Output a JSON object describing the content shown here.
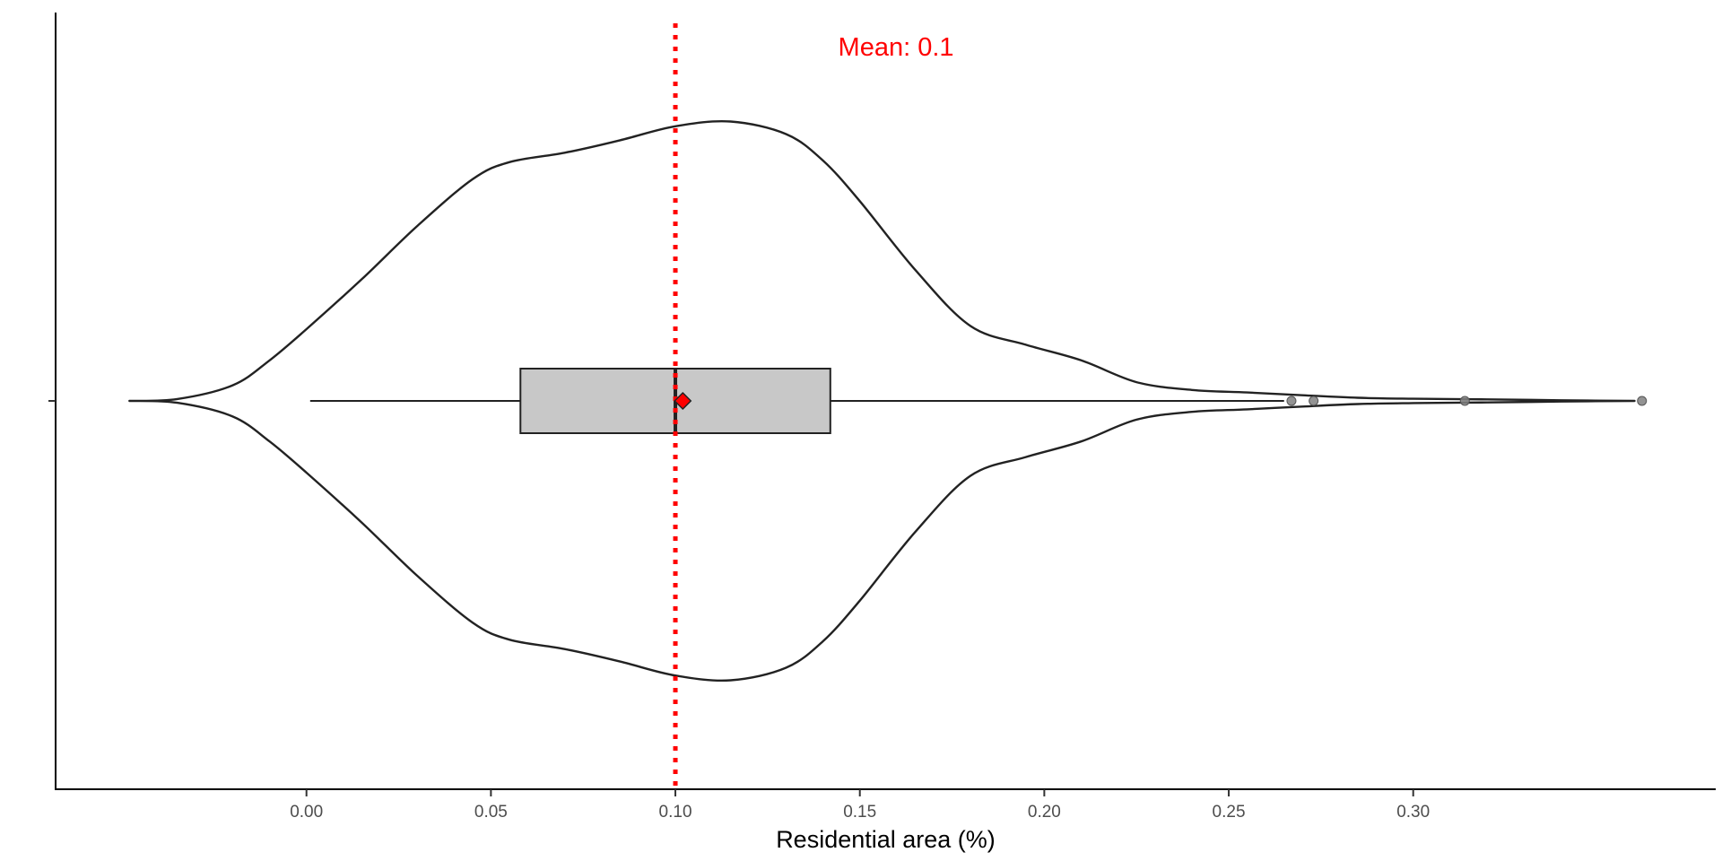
{
  "chart_data": {
    "type": "violin",
    "orientation": "horizontal",
    "title": "",
    "xlabel": "Residential area (%)",
    "ylabel": "",
    "xlim": [
      -0.068,
      0.382
    ],
    "x_ticks": [
      "0.00",
      "0.05",
      "0.10",
      "0.15",
      "0.20",
      "0.25",
      "0.30"
    ],
    "x_tick_values": [
      0.0,
      0.05,
      0.1,
      0.15,
      0.2,
      0.25,
      0.3
    ],
    "grid": false,
    "legend": "none",
    "violin": {
      "fill": "#ffffff",
      "outline_color": "#222222",
      "density_profile": [
        [
          -0.048,
          0.0
        ],
        [
          -0.035,
          0.006
        ],
        [
          -0.02,
          0.05
        ],
        [
          -0.01,
          0.13
        ],
        [
          0.0,
          0.23
        ],
        [
          0.015,
          0.39
        ],
        [
          0.03,
          0.56
        ],
        [
          0.045,
          0.71
        ],
        [
          0.055,
          0.765
        ],
        [
          0.07,
          0.795
        ],
        [
          0.085,
          0.835
        ],
        [
          0.1,
          0.88
        ],
        [
          0.115,
          0.895
        ],
        [
          0.13,
          0.855
        ],
        [
          0.14,
          0.77
        ],
        [
          0.15,
          0.64
        ],
        [
          0.165,
          0.42
        ],
        [
          0.18,
          0.24
        ],
        [
          0.195,
          0.18
        ],
        [
          0.21,
          0.13
        ],
        [
          0.225,
          0.06
        ],
        [
          0.24,
          0.035
        ],
        [
          0.255,
          0.027
        ],
        [
          0.27,
          0.018
        ],
        [
          0.285,
          0.01
        ],
        [
          0.3,
          0.007
        ],
        [
          0.32,
          0.005
        ],
        [
          0.34,
          0.002
        ],
        [
          0.36,
          0.0
        ]
      ]
    },
    "boxplot": {
      "whisker_low": 0.001,
      "q1": 0.058,
      "median": 0.1,
      "q3": 0.142,
      "whisker_high": 0.265,
      "fill": "#c8c8c8",
      "outliers": [
        0.267,
        0.273,
        0.314,
        0.362
      ]
    },
    "mean": {
      "value": 0.102,
      "line_value": 0.1,
      "label": "Mean: 0.1",
      "color": "#ff0000"
    }
  }
}
